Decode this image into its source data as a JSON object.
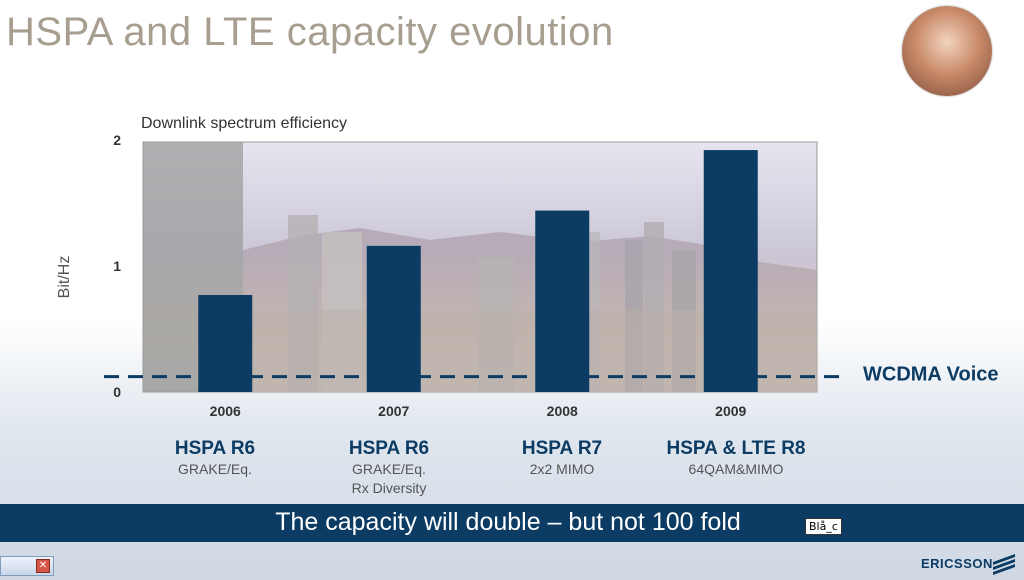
{
  "title": "HSPA and LTE capacity evolution",
  "chart_data": {
    "type": "bar",
    "title": "Downlink spectrum efficiency",
    "ylabel": "Bit/Hz",
    "xlabel": "",
    "ylim": [
      0,
      2
    ],
    "yticks": [
      "0",
      "1",
      "2"
    ],
    "categories": [
      "2006",
      "2007",
      "2008",
      "2009"
    ],
    "values": [
      0.77,
      1.16,
      1.44,
      1.92
    ],
    "reference_line": {
      "label": "WCDMA Voice",
      "value": 0.13
    },
    "bar_color": "#0c3b63"
  },
  "releases": [
    {
      "name": "HSPA R6",
      "detail": "GRAKE/Eq."
    },
    {
      "name": "HSPA R6",
      "detail": "GRAKE/Eq.\nRx Diversity"
    },
    {
      "name": "HSPA R7",
      "detail": "2x2 MIMO"
    },
    {
      "name": "HSPA & LTE R8",
      "detail": "64QAM&MIMO"
    }
  ],
  "banner": {
    "text": "The capacity will double – but not 100 fold"
  },
  "tag": "Blå_c",
  "logo": "ERICSSON"
}
